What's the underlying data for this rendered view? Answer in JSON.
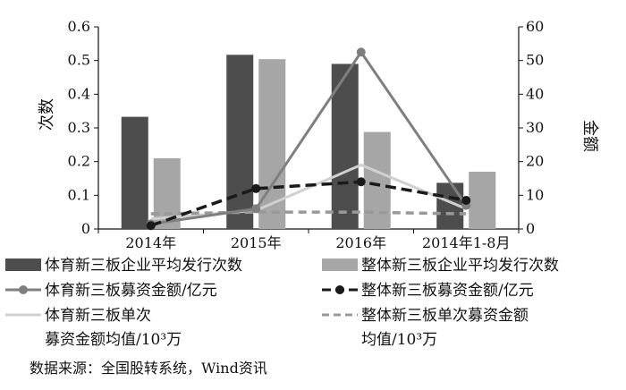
{
  "chart_data": {
    "type": "bar",
    "categories": [
      "2014年",
      "2015年",
      "2016年",
      "2014年1-8月"
    ],
    "ylabel": "次数",
    "y2label": "金额",
    "ylim": [
      0,
      0.6
    ],
    "y2lim": [
      0,
      60
    ],
    "yticks": [
      "0",
      "0.1",
      "0.2",
      "0.3",
      "0.4",
      "0.5",
      "0.6"
    ],
    "y2ticks": [
      "0",
      "10",
      "20",
      "30",
      "40",
      "50",
      "60"
    ],
    "bars": [
      {
        "name": "体育新三板企业平均发行次数",
        "values": [
          0.333,
          0.517,
          0.49,
          0.137
        ],
        "color": "#4d4d4d"
      },
      {
        "name": "整体新三板企业平均发行次数",
        "values": [
          0.21,
          0.504,
          0.288,
          0.17
        ],
        "color": "#a6a6a6"
      }
    ],
    "lines": [
      {
        "name": "体育新三板募资金额/亿元",
        "values": [
          1.5,
          6,
          52.5,
          7
        ],
        "color": "#7f7f7f",
        "style": "solid-marker",
        "axis": "right"
      },
      {
        "name": "整体新三板募资金额/亿元",
        "values": [
          1,
          12,
          14,
          8.5
        ],
        "color": "#1a1a1a",
        "style": "dash-marker",
        "axis": "right"
      },
      {
        "name": "体育新三板单次募资金额均值/10³万",
        "values": [
          3,
          5.5,
          19,
          6
        ],
        "color": "#d0d0d0",
        "style": "solid",
        "axis": "right"
      },
      {
        "name": "整体新三板单次募资金额均值/10³万",
        "values": [
          4.5,
          5,
          5,
          4.5
        ],
        "color": "#999999",
        "style": "dash",
        "axis": "right"
      }
    ],
    "legend": {
      "placement": "bottom",
      "items": [
        {
          "label": "体育新三板企业平均发行次数"
        },
        {
          "label": "整体新三板企业平均发行次数"
        },
        {
          "label": "体育新三板募资金额/亿元"
        },
        {
          "label": "整体新三板募资金额/亿元"
        },
        {
          "label": "体育新三板单次",
          "label2": "募资金额均值/10³万"
        },
        {
          "label": "整体新三板单次募资金额",
          "label2": "均值/10³万"
        }
      ]
    }
  },
  "source": "数据来源：全国股转系统，Wind资讯"
}
